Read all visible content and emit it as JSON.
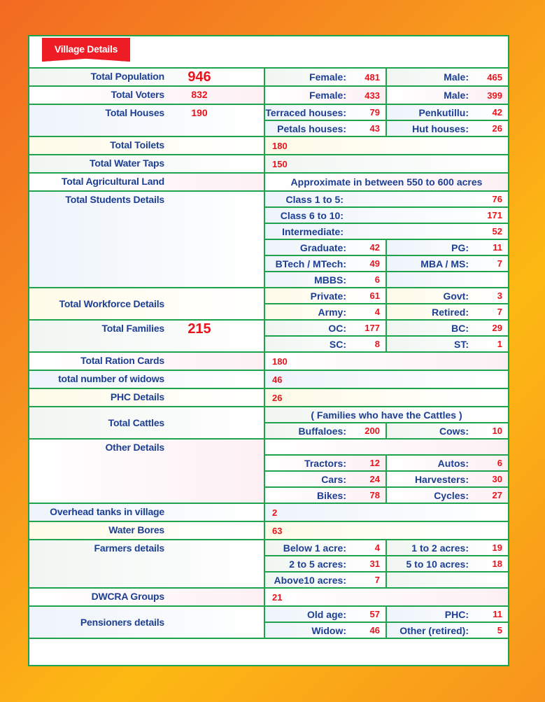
{
  "title": "Village Details",
  "colors": {
    "border": "#1ea24b",
    "label": "#1c3f94",
    "value": "#e8141c",
    "ribbon": "#ee1c24"
  },
  "sections": [
    {
      "label": "Total Population",
      "value": "946",
      "big": true,
      "rows": [
        [
          {
            "l": "Female:",
            "v": "481"
          },
          {
            "l": "Male:",
            "v": "465"
          }
        ]
      ]
    },
    {
      "label": "Total Voters",
      "value": "832",
      "rows": [
        [
          {
            "l": "Female:",
            "v": "433"
          },
          {
            "l": "Male:",
            "v": "399"
          }
        ]
      ]
    },
    {
      "label": "Total Houses",
      "value": "190",
      "rows": [
        [
          {
            "l": "Terraced houses:",
            "v": "79"
          },
          {
            "l": "Penkutillu:",
            "v": "42"
          }
        ],
        [
          {
            "l": "Petals houses:",
            "v": "43"
          },
          {
            "l": "Hut houses:",
            "v": "26"
          }
        ]
      ]
    },
    {
      "label": "Total Toilets",
      "rows": [
        {
          "full": "180"
        }
      ]
    },
    {
      "label": "Total Water Taps",
      "rows": [
        {
          "full": "150"
        }
      ]
    },
    {
      "label": "Total Agricultural Land",
      "rows": [
        {
          "center": "Approximate in between 550 to 600 acres"
        }
      ]
    },
    {
      "label": "Total Students Details",
      "rows": [
        {
          "wide": {
            "l": "Class 1 to 5:",
            "v": "76"
          }
        },
        {
          "wide": {
            "l": "Class 6 to 10:",
            "v": "171"
          }
        },
        {
          "wide": {
            "l": "Intermediate:",
            "v": "52"
          }
        },
        [
          {
            "l": "Graduate:",
            "v": "42"
          },
          {
            "l": "PG:",
            "v": "11"
          }
        ],
        [
          {
            "l": "BTech / MTech:",
            "v": "49"
          },
          {
            "l": "MBA / MS:",
            "v": "7"
          }
        ],
        [
          {
            "l": "MBBS:",
            "v": "6"
          },
          null
        ]
      ]
    },
    {
      "label": "Total Workforce Details",
      "middle": true,
      "rows": [
        [
          {
            "l": "Private:",
            "v": "61"
          },
          {
            "l": "Govt:",
            "v": "3"
          }
        ],
        [
          {
            "l": "Army:",
            "v": "4"
          },
          {
            "l": "Retired:",
            "v": "7"
          }
        ]
      ]
    },
    {
      "label": "Total Families",
      "value": "215",
      "big": true,
      "rows": [
        [
          {
            "l": "OC:",
            "v": "177"
          },
          {
            "l": "BC:",
            "v": "29"
          }
        ],
        [
          {
            "l": "SC:",
            "v": "8"
          },
          {
            "l": "ST:",
            "v": "1"
          }
        ]
      ]
    },
    {
      "label": "Total Ration Cards",
      "rows": [
        {
          "full": "180"
        }
      ]
    },
    {
      "label": "total number of widows",
      "rows": [
        {
          "full": "46"
        }
      ]
    },
    {
      "label": "PHC Details",
      "rows": [
        {
          "full": "26"
        }
      ]
    },
    {
      "label": "Total Cattles",
      "middle": true,
      "rows": [
        {
          "center": "( Families who have the Cattles )"
        },
        [
          {
            "l": "Buffaloes:",
            "v": "200"
          },
          {
            "l": "Cows:",
            "v": "10"
          }
        ]
      ]
    },
    {
      "label": "Other Details",
      "rows": [
        {
          "full": ""
        },
        [
          {
            "l": "Tractors:",
            "v": "12"
          },
          {
            "l": "Autos:",
            "v": "6"
          }
        ],
        [
          {
            "l": "Cars:",
            "v": "24"
          },
          {
            "l": "Harvesters:",
            "v": "30"
          }
        ],
        [
          {
            "l": "Bikes:",
            "v": "78"
          },
          {
            "l": "Cycles:",
            "v": "27"
          }
        ]
      ]
    },
    {
      "label": "Overhead tanks in village",
      "rows": [
        {
          "full": "2"
        }
      ]
    },
    {
      "label": "Water Bores",
      "rows": [
        {
          "full": "63"
        }
      ]
    },
    {
      "label": "Farmers details",
      "rows": [
        [
          {
            "l": "Below 1 acre:",
            "v": "4"
          },
          {
            "l": "1 to 2 acres:",
            "v": "19"
          }
        ],
        [
          {
            "l": "2 to 5 acres:",
            "v": "31"
          },
          {
            "l": "5 to 10 acres:",
            "v": "18"
          }
        ],
        [
          {
            "l": "Above10 acres:",
            "v": "7"
          },
          null
        ]
      ]
    },
    {
      "label": "DWCRA Groups",
      "rows": [
        {
          "full": "21"
        }
      ]
    },
    {
      "label": "Pensioners details",
      "middle": true,
      "rows": [
        [
          {
            "l": "Old age:",
            "v": "57"
          },
          {
            "l": "PHC:",
            "v": "11"
          }
        ],
        [
          {
            "l": "Widow:",
            "v": "46"
          },
          {
            "l": "Other (retired):",
            "v": "5"
          }
        ]
      ]
    }
  ]
}
